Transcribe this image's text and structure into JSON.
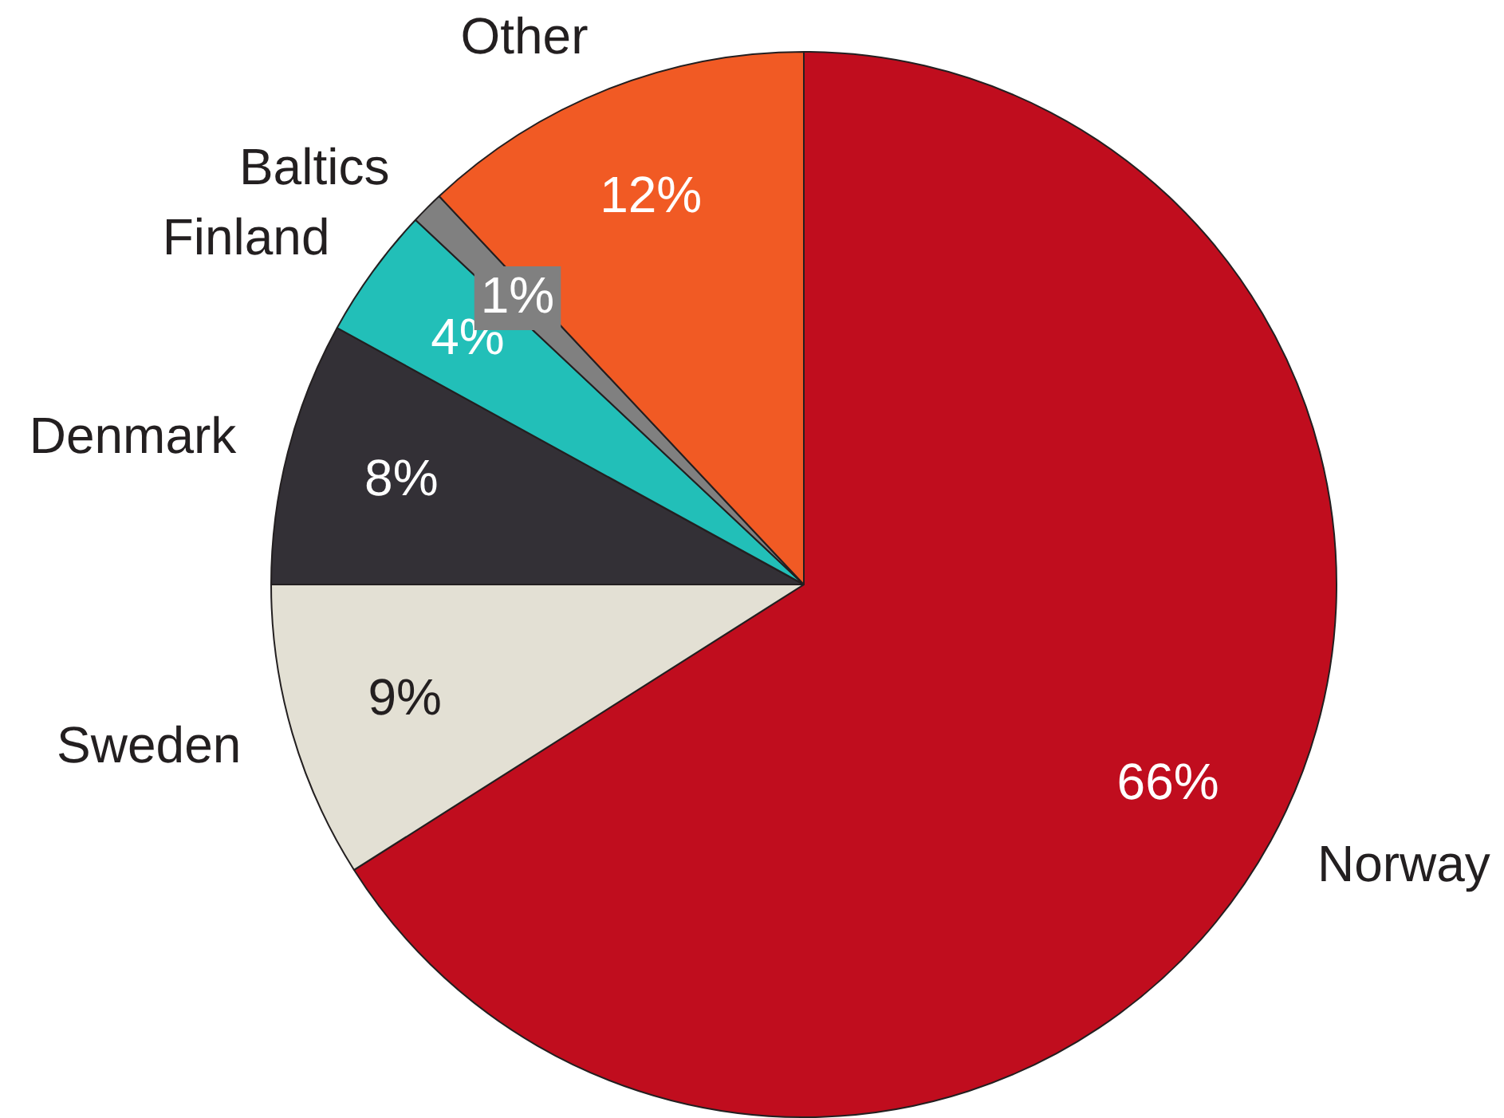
{
  "chart_data": {
    "type": "pie",
    "categories": [
      "Norway",
      "Sweden",
      "Denmark",
      "Finland",
      "Baltics",
      "Other"
    ],
    "values": [
      66,
      9,
      8,
      4,
      1,
      12
    ],
    "value_labels": [
      "66%",
      "9%",
      "8%",
      "4%",
      "1%",
      "12%"
    ],
    "colors": [
      "#c00d1e",
      "#e3e0d4",
      "#333036",
      "#22bfb8",
      "#808080",
      "#f15a24"
    ],
    "legend": false
  }
}
